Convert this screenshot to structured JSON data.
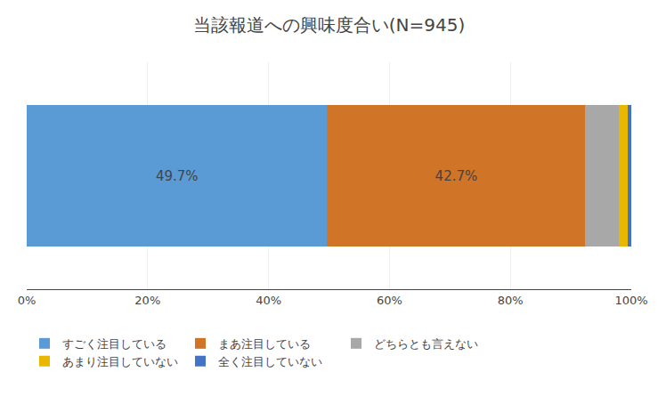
{
  "chart_data": {
    "type": "bar",
    "orientation": "horizontal",
    "stacked": true,
    "title": "当該報道への興味度合い(N=945)",
    "categories": [
      null
    ],
    "series": [
      {
        "name": "すごく注目している",
        "color": "#5B9BD5",
        "values": [
          49.7
        ],
        "value_labels": [
          "49.7%"
        ]
      },
      {
        "name": "まあ注目している",
        "color": "#D07428",
        "values": [
          42.7
        ],
        "value_labels": [
          "42.7%"
        ]
      },
      {
        "name": "どちらとも言えない",
        "color": "#A8A8A8",
        "values": [
          5.6
        ]
      },
      {
        "name": "あまり注目していない",
        "color": "#E8B800",
        "values": [
          1.4
        ]
      },
      {
        "name": "全く注目していない",
        "color": "#4472C4",
        "values": [
          0.6
        ]
      }
    ],
    "xlim": [
      0,
      100
    ],
    "xticks": [
      {
        "value": 0,
        "label": "0%"
      },
      {
        "value": 20,
        "label": "20%"
      },
      {
        "value": 40,
        "label": "40%"
      },
      {
        "value": 60,
        "label": "60%"
      },
      {
        "value": 80,
        "label": "80%"
      },
      {
        "value": 100,
        "label": "100%"
      }
    ],
    "grid": true,
    "legend": "bottom",
    "data_labels": true,
    "tick_labels": "x"
  }
}
